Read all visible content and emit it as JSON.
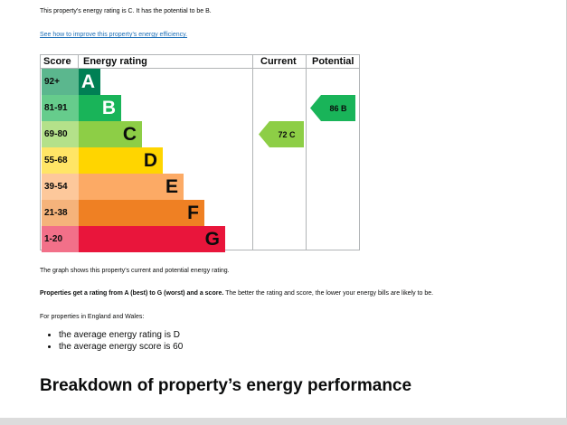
{
  "intro": "This property’s energy rating is C. It has the potential to be B.",
  "improve_link": "See how to improve this property’s energy efficiency.",
  "chart_data": {
    "type": "bar",
    "headers": {
      "score": "Score",
      "rating": "Energy rating",
      "current": "Current",
      "potential": "Potential"
    },
    "bands": [
      {
        "score": "92+",
        "letter": "A",
        "color": "#008054",
        "text_color": "#ffffff",
        "score_bg": "#5bb78e"
      },
      {
        "score": "81-91",
        "letter": "B",
        "color": "#19b459",
        "text_color": "#ffffff",
        "score_bg": "#66cc8c"
      },
      {
        "score": "69-80",
        "letter": "C",
        "color": "#8dce46",
        "text_color": "#0b0c0c",
        "score_bg": "#b4e18a"
      },
      {
        "score": "55-68",
        "letter": "D",
        "color": "#ffd500",
        "text_color": "#0b0c0c",
        "score_bg": "#ffe566"
      },
      {
        "score": "39-54",
        "letter": "E",
        "color": "#fcaa65",
        "text_color": "#0b0c0c",
        "score_bg": "#fdc89b"
      },
      {
        "score": "21-38",
        "letter": "F",
        "color": "#ef8023",
        "text_color": "#0b0c0c",
        "score_bg": "#f5b37b"
      },
      {
        "score": "1-20",
        "letter": "G",
        "color": "#e9153b",
        "text_color": "#0b0c0c",
        "score_bg": "#f27089"
      }
    ],
    "current": {
      "value": 72,
      "letter": "C",
      "label": "72  C",
      "color": "#8dce46",
      "text_color": "#0b0c0c"
    },
    "potential": {
      "value": 86,
      "letter": "B",
      "label": "86  B",
      "color": "#19b459",
      "text_color": "#0b0c0c"
    }
  },
  "graph_note": "The graph shows this property’s current and potential energy rating.",
  "ratings_bold": "Properties get a rating from A (best) to G (worst) and a score.",
  "ratings_rest": " The better the rating and score, the lower your energy bills are likely to be.",
  "england_wales": "For properties in England and Wales:",
  "averages": [
    "the average energy rating is D",
    "the average energy score is 60"
  ],
  "breakdown_heading": "Breakdown of property’s energy performance"
}
